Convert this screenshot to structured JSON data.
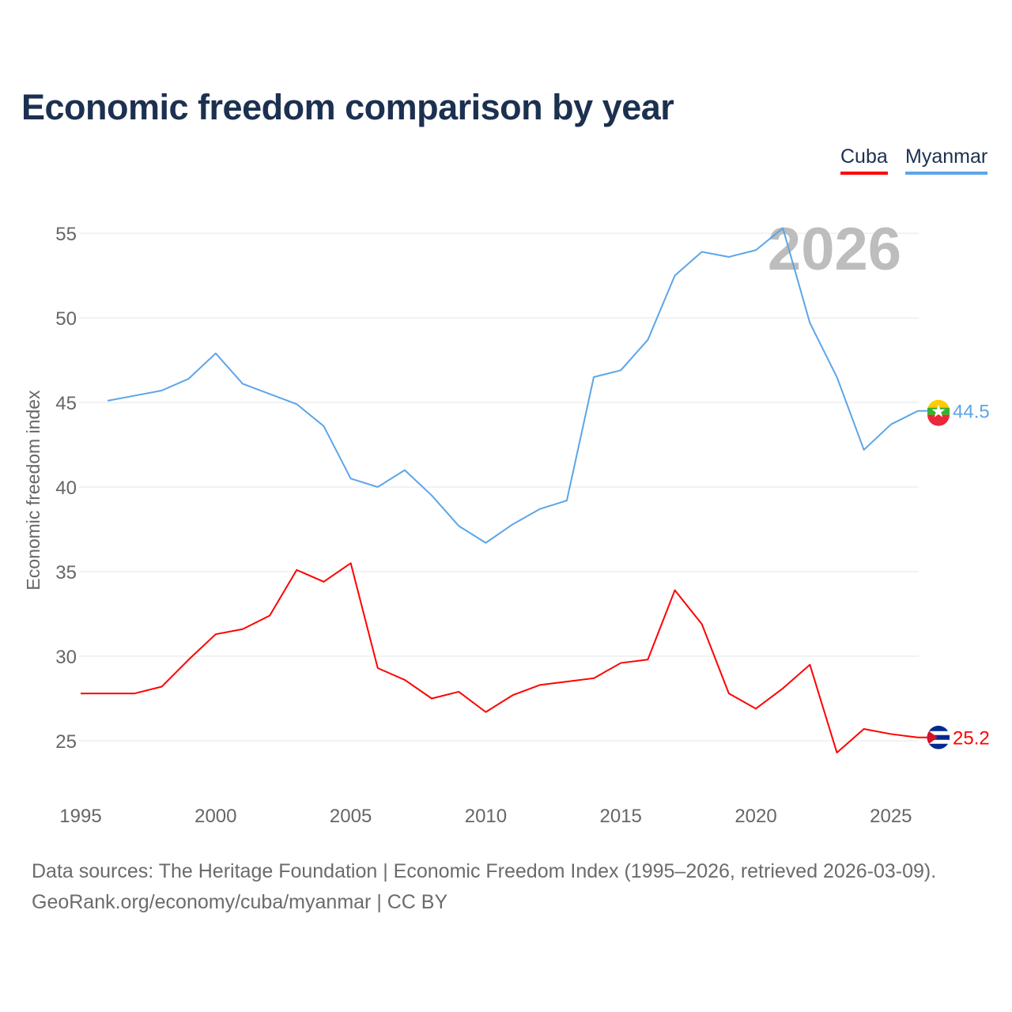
{
  "chart_data": {
    "type": "line",
    "title": "Economic freedom comparison by year",
    "xlabel": "",
    "ylabel": "Economic freedom index",
    "xlim": [
      1995,
      2026
    ],
    "ylim": [
      22.5,
      57
    ],
    "x_ticks": [
      1995,
      2000,
      2005,
      2010,
      2015,
      2020,
      2025
    ],
    "y_ticks": [
      25,
      30,
      35,
      40,
      45,
      50,
      55
    ],
    "grid": true,
    "legend_position": "top-right",
    "watermark_year": "2026",
    "series": [
      {
        "name": "Cuba",
        "color": "#ff0000",
        "end_label": "25.2",
        "x": [
          1995,
          1996,
          1997,
          1998,
          1999,
          2000,
          2001,
          2002,
          2003,
          2004,
          2005,
          2006,
          2007,
          2008,
          2009,
          2010,
          2011,
          2012,
          2013,
          2014,
          2015,
          2016,
          2017,
          2018,
          2019,
          2020,
          2021,
          2022,
          2023,
          2024,
          2025,
          2026
        ],
        "values": [
          27.8,
          27.8,
          27.8,
          28.2,
          29.8,
          31.3,
          31.6,
          32.4,
          35.1,
          34.4,
          35.5,
          29.3,
          28.6,
          27.5,
          27.9,
          26.7,
          27.7,
          28.3,
          28.5,
          28.7,
          29.6,
          29.8,
          33.9,
          31.9,
          27.8,
          26.9,
          28.1,
          29.5,
          24.3,
          25.7,
          25.4,
          25.2
        ]
      },
      {
        "name": "Myanmar",
        "color": "#5da5e8",
        "end_label": "44.5",
        "x": [
          1996,
          1997,
          1998,
          1999,
          2000,
          2001,
          2002,
          2003,
          2004,
          2005,
          2006,
          2007,
          2008,
          2009,
          2010,
          2011,
          2012,
          2013,
          2014,
          2015,
          2016,
          2017,
          2018,
          2019,
          2020,
          2021,
          2022,
          2023,
          2024,
          2025,
          2026
        ],
        "values": [
          45.1,
          45.4,
          45.7,
          46.4,
          47.9,
          46.1,
          45.5,
          44.9,
          43.6,
          40.5,
          40.0,
          41.0,
          39.5,
          37.7,
          36.7,
          37.8,
          38.7,
          39.2,
          46.5,
          46.9,
          48.7,
          52.5,
          53.9,
          53.6,
          54.0,
          55.3,
          49.7,
          46.5,
          42.2,
          43.7,
          44.5
        ]
      }
    ]
  },
  "footer": {
    "line1": "Data sources: The Heritage Foundation | Economic Freedom Index (1995–2026, retrieved 2026-03-09).",
    "line2": "GeoRank.org/economy/cuba/myanmar | CC BY"
  }
}
